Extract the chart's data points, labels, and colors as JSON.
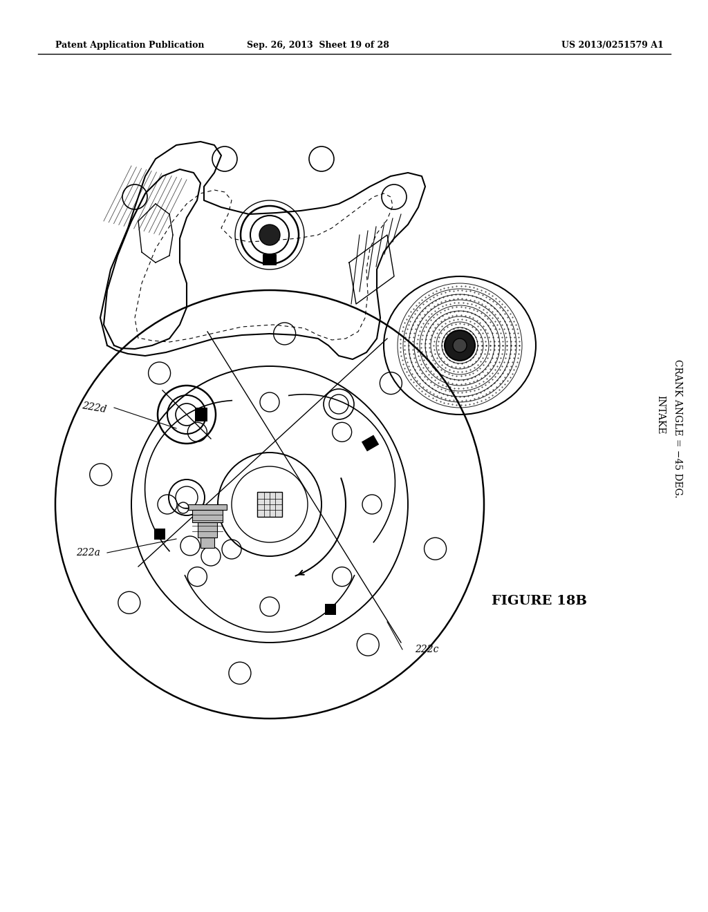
{
  "bg_color": "#ffffff",
  "header_left": "Patent Application Publication",
  "header_mid": "Sep. 26, 2013  Sheet 19 of 28",
  "header_right": "US 2013/0251579 A1",
  "figure_label": "FIGURE 18B",
  "label_222a": "222a",
  "label_222c": "222c",
  "label_222d": "222d",
  "intake_line1": "INTAKE",
  "intake_line2": "CRANK ANGLE = −45 DEG."
}
